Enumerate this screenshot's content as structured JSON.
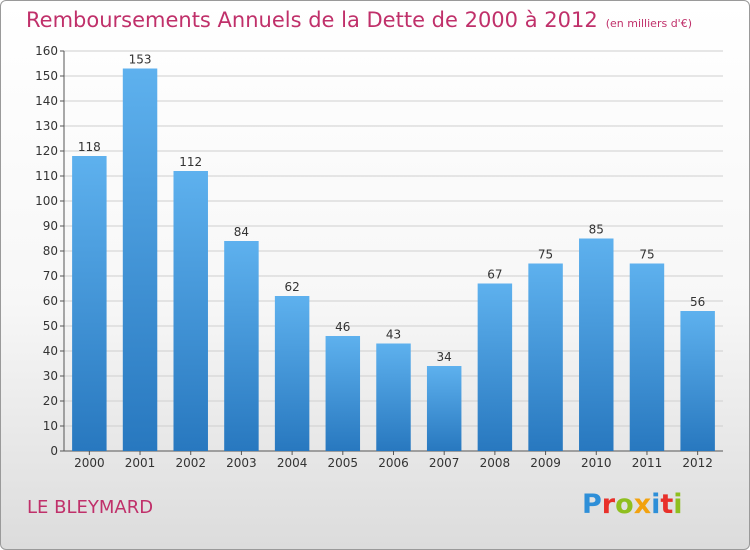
{
  "title": "Remboursements Annuels de la Dette de 2000 à 2012",
  "subtitle": "(en milliers d'€)",
  "place": "LE BLEYMARD",
  "logo": {
    "text": "Proxiti",
    "letters": [
      {
        "ch": "P",
        "color": "#2e8fd8"
      },
      {
        "ch": "r",
        "color": "#e8302a"
      },
      {
        "ch": "o",
        "color": "#8fbf1f"
      },
      {
        "ch": "x",
        "color": "#f2a20f"
      },
      {
        "ch": "i",
        "color": "#2e8fd8"
      },
      {
        "ch": "t",
        "color": "#e8302a"
      },
      {
        "ch": "i",
        "color": "#8fbf1f"
      }
    ]
  },
  "colors": {
    "title": "#c0306a",
    "bar_light": "#5eb1ee",
    "bar_dark": "#2878bf",
    "grid": "#cfcfcf"
  },
  "chart_data": {
    "type": "bar",
    "title": "Remboursements Annuels de la Dette de 2000 à 2012",
    "subtitle": "(en milliers d'€)",
    "xlabel": "",
    "ylabel": "",
    "categories": [
      "2000",
      "2001",
      "2002",
      "2003",
      "2004",
      "2005",
      "2006",
      "2007",
      "2008",
      "2009",
      "2010",
      "2011",
      "2012"
    ],
    "values": [
      118,
      153,
      112,
      84,
      62,
      46,
      43,
      34,
      67,
      75,
      85,
      75,
      56
    ],
    "ylim": [
      0,
      160
    ],
    "yticks": [
      0,
      10,
      20,
      30,
      40,
      50,
      60,
      70,
      80,
      90,
      100,
      110,
      120,
      130,
      140,
      150,
      160
    ],
    "grid": true,
    "data_labels": true
  }
}
